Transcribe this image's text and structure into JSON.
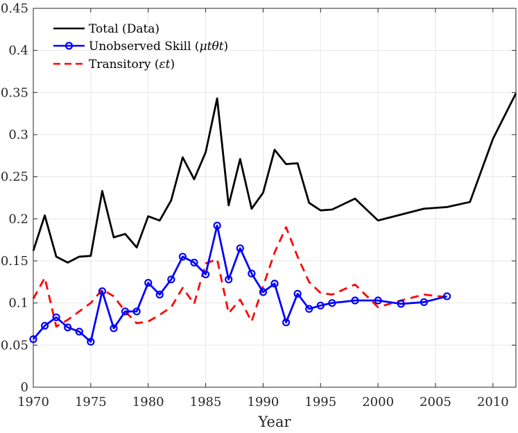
{
  "chart_data": {
    "type": "line",
    "title": "",
    "xlabel": "Year",
    "ylabel": "",
    "xlim": [
      1970,
      2012
    ],
    "ylim": [
      0,
      0.45
    ],
    "grid": true,
    "legend_position": "top-left",
    "x_ticks": [
      "1970",
      "1975",
      "1980",
      "1985",
      "1990",
      "1995",
      "2000",
      "2005",
      "2010"
    ],
    "y_ticks": [
      "0",
      "0.05",
      "0.1",
      "0.15",
      "0.2",
      "0.25",
      "0.3",
      "0.35",
      "0.4",
      "0.45"
    ],
    "series": [
      {
        "name": "Total (Data)",
        "legend_main": "Total (Data)",
        "legend_math": "",
        "color": "#000000",
        "style": "solid",
        "marker": "none",
        "x": [
          1970,
          1971,
          1972,
          1973,
          1974,
          1975,
          1976,
          1977,
          1978,
          1979,
          1980,
          1981,
          1982,
          1983,
          1984,
          1985,
          1986,
          1987,
          1988,
          1989,
          1990,
          1991,
          1992,
          1993,
          1994,
          1995,
          1996,
          1998,
          2000,
          2002,
          2004,
          2006,
          2008,
          2010,
          2012
        ],
        "y": [
          0.162,
          0.204,
          0.155,
          0.148,
          0.155,
          0.156,
          0.233,
          0.178,
          0.182,
          0.166,
          0.203,
          0.198,
          0.222,
          0.273,
          0.247,
          0.279,
          0.343,
          0.216,
          0.271,
          0.212,
          0.231,
          0.282,
          0.265,
          0.266,
          0.219,
          0.21,
          0.211,
          0.224,
          0.198,
          0.205,
          0.212,
          0.214,
          0.22,
          0.295,
          0.349
        ]
      },
      {
        "name": "Unobserved Skill (μtθt)",
        "legend_main": "Unobserved Skill (",
        "legend_math": "μtθt",
        "color": "#0000ff",
        "style": "solid",
        "marker": "circle",
        "x": [
          1970,
          1971,
          1972,
          1973,
          1974,
          1975,
          1976,
          1977,
          1978,
          1979,
          1980,
          1981,
          1982,
          1983,
          1984,
          1985,
          1986,
          1987,
          1988,
          1989,
          1990,
          1991,
          1992,
          1993,
          1994,
          1995,
          1996,
          1998,
          2000,
          2002,
          2004,
          2006
        ],
        "y": [
          0.057,
          0.073,
          0.083,
          0.071,
          0.066,
          0.054,
          0.114,
          0.07,
          0.09,
          0.09,
          0.124,
          0.11,
          0.128,
          0.155,
          0.148,
          0.134,
          0.192,
          0.128,
          0.165,
          0.135,
          0.113,
          0.123,
          0.077,
          0.111,
          0.093,
          0.097,
          0.1,
          0.103,
          0.103,
          0.099,
          0.101,
          0.108
        ]
      },
      {
        "name": "Transitory (εt)",
        "legend_main": "Transitory (",
        "legend_math": "εt",
        "color": "#ff0000",
        "style": "dashed",
        "marker": "none",
        "x": [
          1970,
          1971,
          1972,
          1973,
          1974,
          1975,
          1976,
          1977,
          1978,
          1979,
          1980,
          1981,
          1982,
          1983,
          1984,
          1985,
          1986,
          1987,
          1988,
          1989,
          1990,
          1991,
          1992,
          1993,
          1994,
          1995,
          1996,
          1998,
          2000,
          2002,
          2004,
          2006
        ],
        "y": [
          0.105,
          0.13,
          0.072,
          0.08,
          0.09,
          0.1,
          0.116,
          0.108,
          0.09,
          0.076,
          0.078,
          0.086,
          0.095,
          0.118,
          0.099,
          0.147,
          0.152,
          0.088,
          0.104,
          0.078,
          0.12,
          0.16,
          0.19,
          0.155,
          0.125,
          0.112,
          0.11,
          0.122,
          0.095,
          0.103,
          0.11,
          0.107
        ]
      }
    ]
  }
}
